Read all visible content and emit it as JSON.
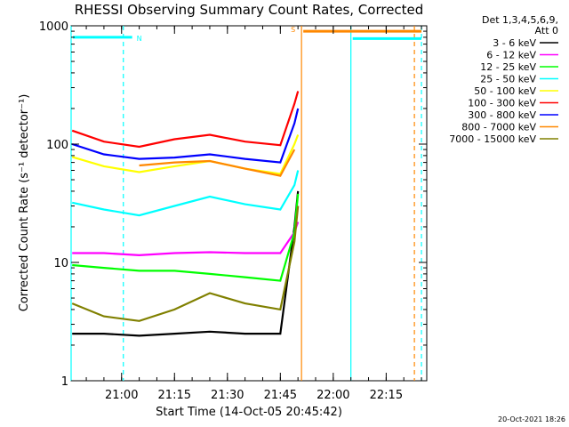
{
  "chart_data": {
    "type": "line",
    "title": "RHESSI Observing Summary Count Rates, Corrected",
    "xlabel": "Start Time (14-Oct-05 20:45:42)",
    "ylabel": "Corrected Count Rate (s⁻¹ detector⁻¹)",
    "y_scale": "log",
    "ylim": [
      1,
      1000
    ],
    "xlim": [
      "20:45:42",
      "22:26:30"
    ],
    "x_ticks": [
      "21:00",
      "21:15",
      "21:30",
      "21:45",
      "22:00",
      "22:15"
    ],
    "y_ticks": [
      "1",
      "10",
      "100",
      "1000"
    ],
    "legend_header": [
      "Det 1,3,4,5,6,9,",
      "Att 0"
    ],
    "grid": false,
    "legend_position": "right",
    "series": [
      {
        "name": "3 - 6 keV",
        "color": "#000000",
        "x": [
          "20:46",
          "20:55",
          "21:05",
          "21:15",
          "21:25",
          "21:35",
          "21:45",
          "21:49",
          "21:50"
        ],
        "y": [
          2.5,
          2.5,
          2.4,
          2.5,
          2.6,
          2.5,
          2.5,
          20,
          40
        ]
      },
      {
        "name": "6 - 12 keV",
        "color": "#ff00ff",
        "x": [
          "20:46",
          "20:55",
          "21:05",
          "21:15",
          "21:25",
          "21:35",
          "21:45",
          "21:49",
          "21:50"
        ],
        "y": [
          12,
          12,
          11.5,
          12,
          12.2,
          12,
          12,
          18,
          22
        ]
      },
      {
        "name": "12 - 25 keV",
        "color": "#00ff00",
        "x": [
          "20:46",
          "20:55",
          "21:05",
          "21:15",
          "21:25",
          "21:35",
          "21:45",
          "21:49",
          "21:50"
        ],
        "y": [
          9.5,
          9,
          8.5,
          8.5,
          8,
          7.5,
          7,
          18,
          38
        ]
      },
      {
        "name": "25 - 50 keV",
        "color": "#00ffff",
        "x": [
          "20:46",
          "20:55",
          "21:05",
          "21:15",
          "21:25",
          "21:35",
          "21:45",
          "21:49",
          "21:50"
        ],
        "y": [
          32,
          28,
          25,
          30,
          36,
          31,
          28,
          45,
          60
        ]
      },
      {
        "name": "50 - 100 keV",
        "color": "#ffff00",
        "x": [
          "20:46",
          "20:55",
          "21:05",
          "21:15",
          "21:25",
          "21:35",
          "21:45",
          "21:49",
          "21:50"
        ],
        "y": [
          78,
          65,
          58,
          65,
          72,
          62,
          56,
          100,
          120
        ]
      },
      {
        "name": "100 - 300 keV",
        "color": "#ff0000",
        "x": [
          "20:46",
          "20:55",
          "21:05",
          "21:15",
          "21:25",
          "21:35",
          "21:45",
          "21:49",
          "21:50"
        ],
        "y": [
          130,
          105,
          95,
          110,
          120,
          105,
          98,
          220,
          280
        ]
      },
      {
        "name": "300 - 800 keV",
        "color": "#0000ff",
        "x": [
          "20:46",
          "20:55",
          "21:05",
          "21:15",
          "21:25",
          "21:35",
          "21:45",
          "21:49",
          "21:50"
        ],
        "y": [
          100,
          82,
          75,
          77,
          82,
          75,
          70,
          150,
          200
        ]
      },
      {
        "name": "800 - 7000 keV",
        "color": "#ff8800",
        "x": [
          "21:05",
          "21:15",
          "21:25",
          "21:35",
          "21:45",
          "21:49"
        ],
        "y": [
          66,
          70,
          72,
          62,
          54,
          90
        ]
      },
      {
        "name": "7000 - 15000 keV",
        "color": "#808000",
        "x": [
          "20:46",
          "20:55",
          "21:05",
          "21:15",
          "21:25",
          "21:35",
          "21:45",
          "21:49",
          "21:50"
        ],
        "y": [
          4.5,
          3.5,
          3.2,
          4,
          5.5,
          4.5,
          4,
          15,
          30
        ]
      }
    ],
    "flags": [
      {
        "label": "N",
        "color": "#00ffff",
        "x_start": "20:45:42",
        "x_end": "21:03",
        "level": 800
      },
      {
        "label": "S",
        "color": "#ff8800",
        "x_start": "21:51",
        "x_end": "22:25",
        "level": 900
      },
      {
        "label": "",
        "color": "#00ffff",
        "x_start": "22:05",
        "x_end": "22:25",
        "level": 780
      }
    ],
    "vertical_markers": [
      {
        "x": "20:45:42",
        "color": "#00ffff",
        "style": "solid"
      },
      {
        "x": "21:00:30",
        "color": "#00ffff",
        "style": "dashed"
      },
      {
        "x": "21:51",
        "color": "#ff8800",
        "style": "solid"
      },
      {
        "x": "22:05",
        "color": "#00ffff",
        "style": "solid"
      },
      {
        "x": "22:23",
        "color": "#ff8800",
        "style": "dashed"
      },
      {
        "x": "22:25",
        "color": "#00ffff",
        "style": "dashed"
      }
    ],
    "footer": "20-Oct-2021 18:26"
  }
}
